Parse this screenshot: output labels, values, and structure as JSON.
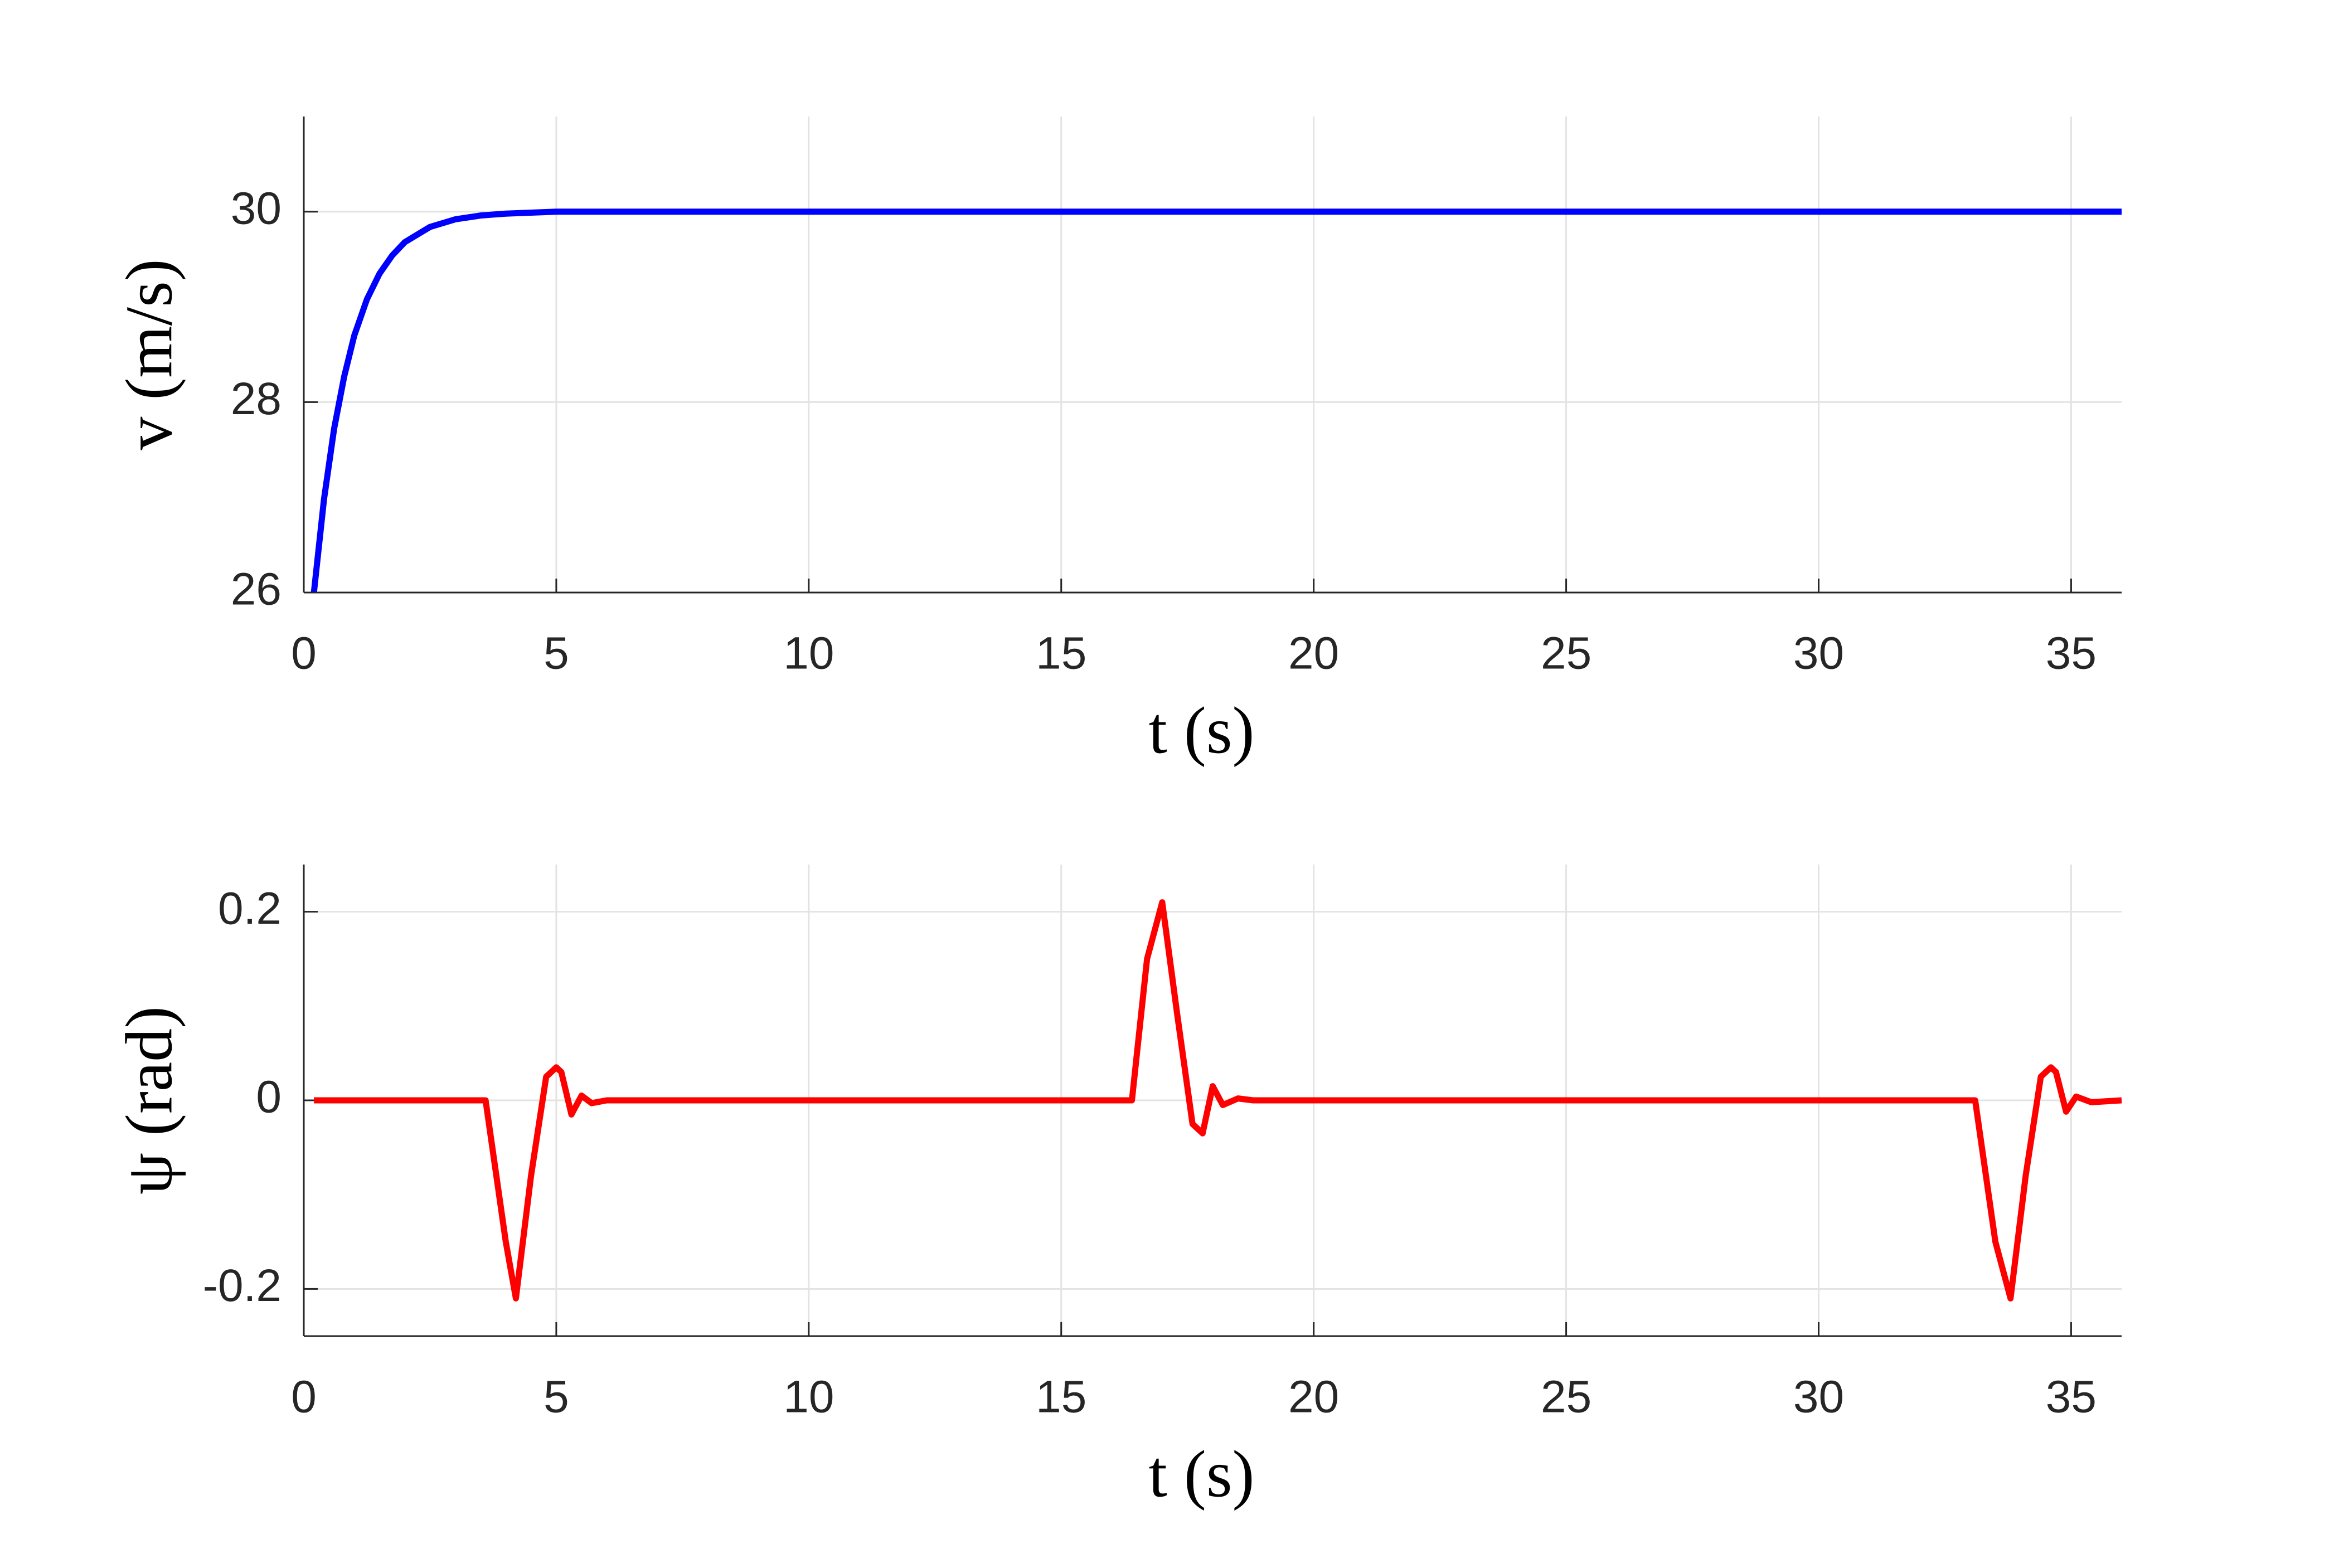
{
  "chart_data": [
    {
      "type": "line",
      "xlabel": "t (s)",
      "ylabel": "v (m/s)",
      "x": [
        0.2,
        0.4,
        0.6,
        0.8,
        1.0,
        1.25,
        1.5,
        1.75,
        2.0,
        2.5,
        3.0,
        3.5,
        4.0,
        5,
        6,
        8,
        10,
        15,
        20,
        25,
        30,
        36
      ],
      "series": [
        {
          "color": "#0000ff",
          "values": [
            26,
            26.98,
            27.72,
            28.27,
            28.7,
            29.08,
            29.35,
            29.54,
            29.68,
            29.84,
            29.92,
            29.96,
            29.98,
            30,
            30,
            30,
            30,
            30,
            30,
            30,
            30,
            30
          ]
        }
      ],
      "xlim": [
        0,
        36
      ],
      "xticks": [
        0,
        5,
        10,
        15,
        20,
        25,
        30,
        35
      ],
      "ylim": [
        26,
        31
      ],
      "yticks": [
        26,
        28,
        30
      ],
      "grid": true
    },
    {
      "type": "line",
      "xlabel": "t (s)",
      "ylabel": "ψ (rad)",
      "x": [
        0.2,
        3.6,
        4.0,
        4.2,
        4.5,
        4.8,
        5.0,
        5.1,
        5.3,
        5.5,
        5.7,
        6.0,
        16.4,
        16.7,
        17.0,
        17.3,
        17.6,
        17.8,
        18.0,
        18.2,
        18.5,
        18.8,
        33.1,
        33.5,
        33.8,
        34.1,
        34.4,
        34.6,
        34.7,
        34.9,
        35.1,
        35.4,
        36
      ],
      "series": [
        {
          "color": "#ff0000",
          "values": [
            0,
            0,
            -0.15,
            -0.21,
            -0.08,
            0.025,
            0.035,
            0.03,
            -0.015,
            0.005,
            -0.003,
            0,
            0,
            0.15,
            0.21,
            0.09,
            -0.025,
            -0.035,
            0.015,
            -0.005,
            0.002,
            0,
            0,
            -0.15,
            -0.21,
            -0.08,
            0.025,
            0.035,
            0.03,
            -0.012,
            0.004,
            -0.002,
            0
          ]
        }
      ],
      "xlim": [
        0,
        36
      ],
      "xticks": [
        0,
        5,
        10,
        15,
        20,
        25,
        30,
        35
      ],
      "ylim": [
        -0.25,
        0.25
      ],
      "yticks": [
        -0.2,
        0,
        0.2
      ],
      "grid": true
    }
  ]
}
